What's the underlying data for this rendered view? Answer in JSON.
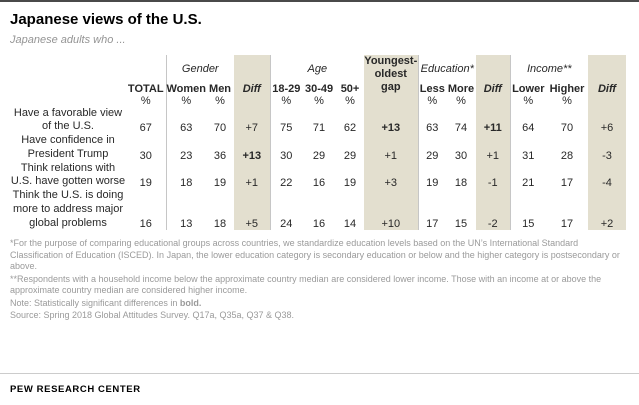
{
  "header": {
    "title": "Japanese views of the U.S.",
    "subtitle": "Japanese adults who ..."
  },
  "chart_data": {
    "type": "table",
    "unit": "%",
    "groups": [
      {
        "label": "Gender"
      },
      {
        "label": "Age"
      },
      {
        "label": "Education*"
      },
      {
        "label": "Income**"
      }
    ],
    "columns": [
      "TOTAL",
      "Women",
      "Men",
      "Diff",
      "18-29",
      "30-49",
      "50+",
      "Youngest-oldest gap",
      "Less",
      "More",
      "Diff",
      "Lower",
      "Higher",
      "Diff"
    ],
    "rows": [
      {
        "label": "Have a favorable view of the U.S.",
        "values": [
          "67",
          "63",
          "70",
          "+7",
          "75",
          "71",
          "62",
          "+13",
          "63",
          "74",
          "+11",
          "64",
          "70",
          "+6"
        ],
        "bold": [
          7,
          10
        ]
      },
      {
        "label": "Have confidence in President Trump",
        "values": [
          "30",
          "23",
          "36",
          "+13",
          "30",
          "29",
          "29",
          "+1",
          "29",
          "30",
          "+1",
          "31",
          "28",
          "-3"
        ],
        "bold": [
          3
        ]
      },
      {
        "label": "Think relations with U.S. have gotten worse",
        "values": [
          "19",
          "18",
          "19",
          "+1",
          "22",
          "16",
          "19",
          "+3",
          "19",
          "18",
          "-1",
          "21",
          "17",
          "-4"
        ],
        "bold": []
      },
      {
        "label": "Think the U.S. is doing more to address major global problems",
        "values": [
          "16",
          "13",
          "18",
          "+5",
          "24",
          "16",
          "14",
          "+10",
          "17",
          "15",
          "-2",
          "15",
          "17",
          "+2"
        ],
        "bold": []
      }
    ],
    "highlight_color": "#e3dfcf"
  },
  "footnotes": {
    "education": "*For the purpose of comparing educational groups across countries, we standardize education levels based on the UN’s International Standard Classification of Education (ISCED). In Japan, the lower education category is secondary education or below and the higher category is postsecondary or above.",
    "income": "**Respondents with a household income below the approximate country median are considered lower income. Those with an income at or above the approximate country median are considered higher income.",
    "note_prefix": "Note: Statistically significant differences in ",
    "note_bold": "bold.",
    "source": "Source: Spring 2018 Global Attitudes Survey. Q17a, Q35a, Q37 & Q38."
  },
  "brand": "PEW RESEARCH CENTER"
}
